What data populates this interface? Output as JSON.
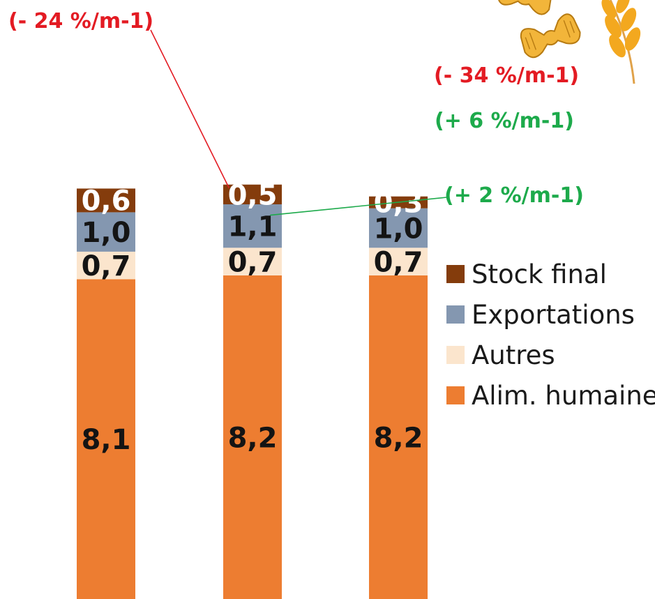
{
  "chart_data": {
    "type": "bar",
    "stacked": true,
    "categories": [
      "",
      "",
      ""
    ],
    "series": [
      {
        "name": "Alim. humaine",
        "color": "#ED7D31",
        "values": [
          8.1,
          8.2,
          8.2
        ],
        "labels": [
          "8,1",
          "8,2",
          "8,2"
        ],
        "label_color": "#141414"
      },
      {
        "name": "Autres",
        "color": "#FBE5CD",
        "values": [
          0.7,
          0.7,
          0.7
        ],
        "labels": [
          "0,7",
          "0,7",
          "0,7"
        ],
        "label_color": "#141414"
      },
      {
        "name": "Exportations",
        "color": "#8497B0",
        "values": [
          1.0,
          1.1,
          1.0
        ],
        "labels": [
          "1,0",
          "1,1",
          "1,0"
        ],
        "label_color": "#141414"
      },
      {
        "name": "Stock final",
        "color": "#843C0C",
        "values": [
          0.6,
          0.5,
          0.3
        ],
        "labels": [
          "0,6",
          "0,5",
          "0,3"
        ],
        "label_color": "#ffffff"
      }
    ],
    "legend_position": "right",
    "legend_order": [
      "Stock final",
      "Exportations",
      "Autres",
      "Alim. humaine"
    ],
    "annotations": [
      {
        "text": "(- 24 %/m-1)",
        "color": "#E31B23",
        "series": "Stock final",
        "bar": 1,
        "leader_line": true
      },
      {
        "text": "(- 34 %/m-1)",
        "color": "#E31B23",
        "series": "Stock final",
        "bar": 2,
        "leader_line": false
      },
      {
        "text": "(+ 6 %/m-1)",
        "color": "#1DAA4B",
        "series": "Exportations",
        "bar": 2,
        "leader_line": false
      },
      {
        "text": "(+ 2 %/m-1)",
        "color": "#1DAA4B",
        "series": "Exportations",
        "bar": 1,
        "leader_line": true
      }
    ],
    "grid": false,
    "title": "",
    "xlabel": "",
    "ylabel": ""
  },
  "decoration": {
    "icon_names": [
      "pasta-icon",
      "wheat-icon"
    ],
    "pasta_color": "#F2B53A",
    "wheat_color": "#F3A81F"
  }
}
